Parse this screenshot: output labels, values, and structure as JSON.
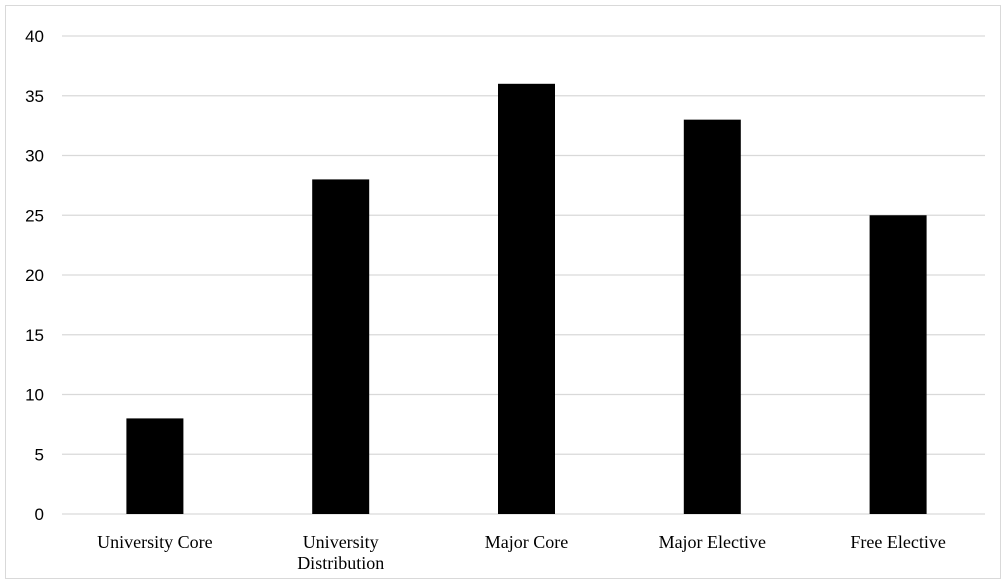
{
  "chart_data": {
    "type": "bar",
    "title": "",
    "xlabel": "",
    "ylabel": "",
    "categories": [
      [
        "University Core"
      ],
      [
        "University",
        "Distribution"
      ],
      [
        "Major Core"
      ],
      [
        "Major Elective"
      ],
      [
        "Free Elective"
      ]
    ],
    "values": [
      8,
      28,
      36,
      33,
      25
    ],
    "ylim": [
      0,
      40
    ],
    "yticks": [
      "0",
      "5",
      "10",
      "15",
      "20",
      "25",
      "30",
      "35",
      "40"
    ],
    "grid": true,
    "legend": "none",
    "bar_color": "#000000",
    "grid_color": "#d9d9d9"
  }
}
